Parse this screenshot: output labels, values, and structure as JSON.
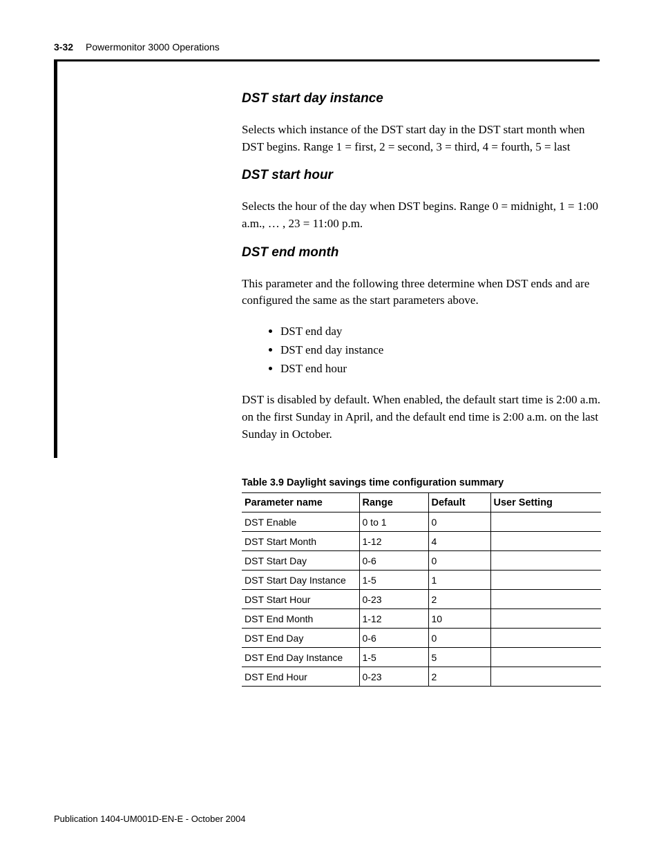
{
  "header": {
    "page_number": "3-32",
    "title": "Powermonitor 3000 Operations"
  },
  "sections": [
    {
      "heading": "DST start day instance",
      "paragraphs": [
        "Selects which instance of the DST start day in the DST start month when DST begins. Range 1 = first, 2 = second, 3 = third, 4 = fourth, 5 = last"
      ]
    },
    {
      "heading": "DST start hour",
      "paragraphs": [
        "Selects the hour of the day when DST begins. Range 0 = midnight, 1 = 1:00 a.m., … , 23 = 11:00 p.m."
      ]
    },
    {
      "heading": "DST end month",
      "paragraphs": [
        "This parameter and the following three determine when DST ends and are configured the same as the start parameters above."
      ],
      "bullets": [
        "DST end day",
        "DST end day instance",
        "DST end hour"
      ],
      "paragraphs_after": [
        "DST is disabled by default. When enabled, the default start time is 2:00 a.m. on the first Sunday in April, and the default end time is 2:00 a.m. on the last Sunday in October."
      ]
    }
  ],
  "table": {
    "caption": "Table 3.9 Daylight savings time configuration summary",
    "columns": [
      "Parameter name",
      "Range",
      "Default",
      "User Setting"
    ],
    "col_widths": [
      "170px",
      "100px",
      "90px",
      "160px"
    ],
    "rows": [
      [
        "DST Enable",
        "0 to 1",
        "0",
        ""
      ],
      [
        "DST Start Month",
        "1-12",
        "4",
        ""
      ],
      [
        "DST Start Day",
        "0-6",
        "0",
        ""
      ],
      [
        "DST Start Day Instance",
        "1-5",
        "1",
        ""
      ],
      [
        "DST Start Hour",
        "0-23",
        "2",
        ""
      ],
      [
        "DST End Month",
        "1-12",
        "10",
        ""
      ],
      [
        "DST End Day",
        "0-6",
        "0",
        ""
      ],
      [
        "DST End Day Instance",
        "1-5",
        "5",
        ""
      ],
      [
        "DST End Hour",
        "0-23",
        "2",
        ""
      ]
    ]
  },
  "footer": {
    "text": "Publication 1404-UM001D-EN-E - October 2004"
  }
}
